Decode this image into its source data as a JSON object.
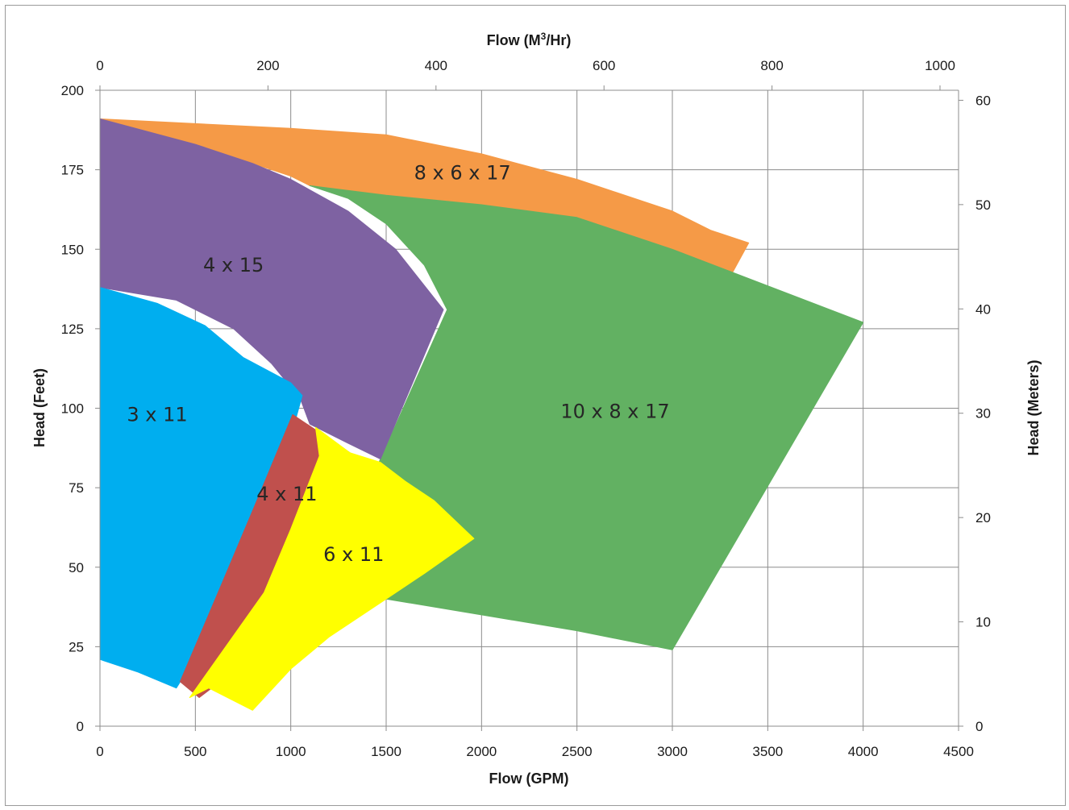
{
  "chart_data": {
    "type": "area",
    "title": "",
    "x_axis_bottom": {
      "label": "Flow (GPM)",
      "ticks": [
        0,
        500,
        1000,
        1500,
        2000,
        2500,
        3000,
        3500,
        4000,
        4500
      ],
      "range": [
        0,
        4500
      ]
    },
    "x_axis_top": {
      "label_prefix": "Flow (M",
      "label_sup": "3",
      "label_suffix": "/Hr)",
      "ticks": [
        0,
        200,
        400,
        600,
        800,
        1000
      ]
    },
    "y_axis_left": {
      "label": "Head (Feet)",
      "ticks": [
        0,
        25,
        50,
        75,
        100,
        125,
        150,
        175,
        200
      ],
      "range": [
        0,
        200
      ]
    },
    "y_axis_right": {
      "label": "Head (Meters)",
      "ticks": [
        0,
        10,
        20,
        30,
        40,
        50,
        60
      ]
    },
    "grid": true,
    "regions": [
      {
        "name": "8 x 6 x 17",
        "color": "#F59A47",
        "label_pos": [
          1900,
          172
        ],
        "points": [
          [
            0,
            191
          ],
          [
            1000,
            188
          ],
          [
            1500,
            186
          ],
          [
            2000,
            180
          ],
          [
            2500,
            172
          ],
          [
            3000,
            162
          ],
          [
            3200,
            156
          ],
          [
            3400,
            152
          ],
          [
            3300,
            141
          ],
          [
            2500,
            160
          ],
          [
            2000,
            164
          ],
          [
            1500,
            167
          ],
          [
            1100,
            170
          ],
          [
            1000,
            173
          ],
          [
            500,
            183
          ],
          [
            0,
            191
          ]
        ]
      },
      {
        "name": "10 x 8 x 17",
        "color": "#62B162",
        "label_pos": [
          2700,
          97
        ],
        "points": [
          [
            1100,
            170
          ],
          [
            1500,
            167
          ],
          [
            2000,
            164
          ],
          [
            2500,
            160
          ],
          [
            3000,
            150
          ],
          [
            4000,
            127
          ],
          [
            3000,
            24
          ],
          [
            2500,
            30
          ],
          [
            2000,
            35
          ],
          [
            1500,
            40
          ],
          [
            1200,
            44
          ],
          [
            1300,
            60
          ],
          [
            1400,
            75
          ],
          [
            1470,
            84
          ],
          [
            1820,
            131
          ],
          [
            1700,
            145
          ],
          [
            1500,
            158
          ],
          [
            1300,
            166
          ],
          [
            1100,
            170
          ]
        ]
      },
      {
        "name": "4 x 15",
        "color": "#7E62A2",
        "label_pos": [
          700,
          143
        ],
        "points": [
          [
            0,
            191
          ],
          [
            500,
            183
          ],
          [
            800,
            177
          ],
          [
            1000,
            172
          ],
          [
            1300,
            162
          ],
          [
            1550,
            150
          ],
          [
            1800,
            131
          ],
          [
            1470,
            84
          ],
          [
            1300,
            89
          ],
          [
            1100,
            95
          ],
          [
            1050,
            103
          ],
          [
            900,
            114
          ],
          [
            700,
            125
          ],
          [
            400,
            134
          ],
          [
            0,
            138
          ]
        ]
      },
      {
        "name": "3 x 11",
        "color": "#00AEEF",
        "label_pos": [
          300,
          96
        ],
        "points": [
          [
            0,
            138
          ],
          [
            300,
            133
          ],
          [
            550,
            126
          ],
          [
            750,
            116
          ],
          [
            1000,
            108
          ],
          [
            1060,
            104
          ],
          [
            950,
            80
          ],
          [
            800,
            55
          ],
          [
            640,
            35
          ],
          [
            400,
            12
          ],
          [
            200,
            17
          ],
          [
            0,
            21
          ]
        ]
      },
      {
        "name": "4 x 11",
        "color": "#C0504D",
        "label_pos": [
          980,
          71
        ],
        "points": [
          [
            1010,
            98
          ],
          [
            1310,
            86
          ],
          [
            1100,
            55
          ],
          [
            870,
            25
          ],
          [
            520,
            9
          ],
          [
            420,
            14
          ],
          [
            640,
            45
          ],
          [
            830,
            72
          ]
        ]
      },
      {
        "name": "6 x 11",
        "color": "#FFFF00",
        "label_pos": [
          1330,
          52
        ],
        "points": [
          [
            1130,
            94
          ],
          [
            1310,
            86
          ],
          [
            1470,
            83
          ],
          [
            1600,
            77
          ],
          [
            1750,
            71
          ],
          [
            1960,
            59
          ],
          [
            1700,
            48
          ],
          [
            1500,
            40
          ],
          [
            1200,
            28
          ],
          [
            1000,
            18
          ],
          [
            800,
            5
          ],
          [
            570,
            12
          ],
          [
            470,
            9
          ],
          [
            860,
            42
          ],
          [
            1000,
            62
          ],
          [
            1150,
            85
          ]
        ]
      }
    ]
  }
}
